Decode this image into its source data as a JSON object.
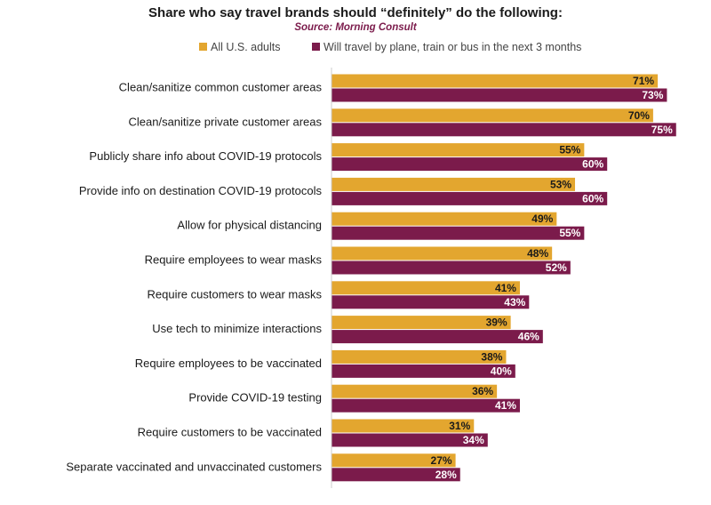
{
  "chart_data": {
    "type": "bar",
    "orientation": "horizontal",
    "title": "Share who say travel brands should “definitely” do the following:",
    "subtitle": "Source: Morning Consult",
    "categories": [
      "Clean/sanitize common customer areas",
      "Clean/sanitize private customer areas",
      "Publicly share info about COVID-19 protocols",
      "Provide info on destination COVID-19 protocols",
      "Allow for physical distancing",
      "Require employees to wear masks",
      "Require customers to wear masks",
      "Use tech to minimize interactions",
      "Require employees to be vaccinated",
      "Provide COVID-19 testing",
      "Require customers to be vaccinated",
      "Separate vaccinated and unvaccinated customers"
    ],
    "series": [
      {
        "name": "All U.S. adults",
        "color": "#E3A62F",
        "values": [
          71,
          70,
          55,
          53,
          49,
          48,
          41,
          39,
          38,
          36,
          31,
          27
        ],
        "labels": [
          "71%",
          "70%",
          "55%",
          "53%",
          "49%",
          "48%",
          "41%",
          "39%",
          "38%",
          "36%",
          "31%",
          "27%"
        ]
      },
      {
        "name": "Will travel by plane, train or bus in the next 3 months",
        "color": "#7B1B4B",
        "values": [
          73,
          75,
          60,
          60,
          55,
          52,
          43,
          46,
          40,
          41,
          34,
          28
        ],
        "labels": [
          "73%",
          "75%",
          "60%",
          "60%",
          "55%",
          "52%",
          "43%",
          "46%",
          "40%",
          "41%",
          "34%",
          "28%"
        ]
      }
    ],
    "xlim": [
      0,
      80
    ],
    "grid": false,
    "legend_position": "top",
    "colors": {
      "title": "#1a1a1a",
      "subtitle": "#7B1B4B",
      "axis": "#cccccc",
      "category_text": "#1a1a1a",
      "label_light": "#1a1a1a",
      "label_dark": "#ffffff"
    }
  }
}
